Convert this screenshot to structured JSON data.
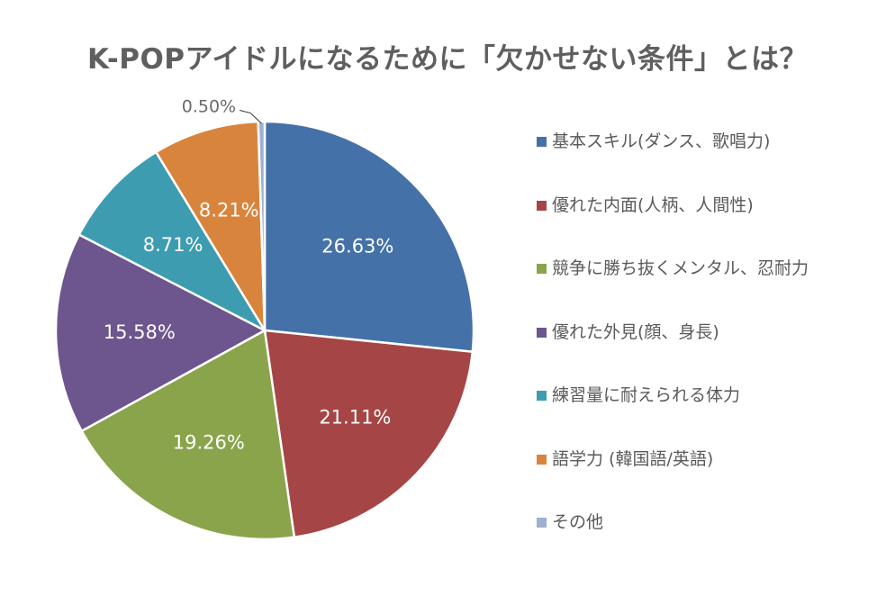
{
  "title": "K-POPアイドルになるために「欠かせない条件」とは？",
  "chart_data": {
    "type": "pie",
    "title": "K-POPアイドルになるために「欠かせない条件」とは？",
    "legend_position": "right",
    "slices": [
      {
        "label": "基本スキル(ダンス、歌唱力)",
        "value": 26.63,
        "value_label": "26.63%",
        "color": "#4471a7"
      },
      {
        "label": "優れた内面(人柄、人間性)",
        "value": 21.11,
        "value_label": "21.11%",
        "color": "#a64545"
      },
      {
        "label": "競争に勝ち抜くメンタル、忍耐力",
        "value": 19.26,
        "value_label": "19.26%",
        "color": "#8aa44c"
      },
      {
        "label": "優れた外見(顔、身長)",
        "value": 15.58,
        "value_label": "15.58%",
        "color": "#6d558e"
      },
      {
        "label": "練習量に耐えられる体力",
        "value": 8.71,
        "value_label": "8.71%",
        "color": "#3e9cb0"
      },
      {
        "label": "語学力 (韓国語/英語)",
        "value": 8.21,
        "value_label": "8.21%",
        "color": "#d9843c"
      },
      {
        "label": "その他",
        "value": 0.5,
        "value_label": "0.50%",
        "color": "#9fb0d0"
      }
    ]
  }
}
